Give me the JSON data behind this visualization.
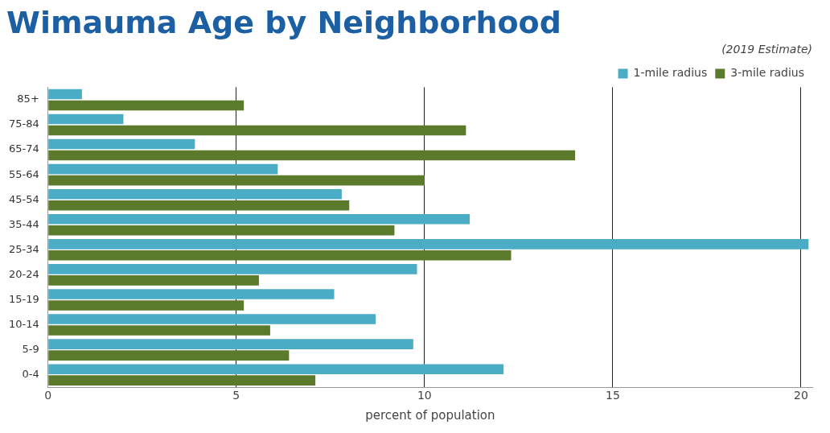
{
  "chart_data": {
    "type": "bar",
    "orientation": "horizontal",
    "title": "Wimauma Age by Neighborhood",
    "subtitle": "(2019 Estimate)",
    "xlabel": "percent of population",
    "categories": [
      "85+",
      "75-84",
      "65-74",
      "55-64",
      "45-54",
      "35-44",
      "25-34",
      "20-24",
      "15-19",
      "10-14",
      "5-9",
      "0-4"
    ],
    "series": [
      {
        "name": "1-mile radius",
        "color": "#4bacc6",
        "values": [
          0.9,
          2.0,
          3.9,
          6.1,
          7.8,
          11.2,
          20.2,
          9.8,
          7.6,
          8.7,
          9.7,
          12.1
        ]
      },
      {
        "name": "3-mile radius",
        "color": "#5b7a2b",
        "values": [
          5.2,
          11.1,
          14.0,
          10.0,
          8.0,
          9.2,
          12.3,
          5.6,
          5.2,
          5.9,
          6.4,
          7.1
        ]
      }
    ],
    "xlim": [
      0,
      20.3
    ],
    "xticks": [
      0,
      5,
      10,
      15,
      20
    ],
    "grid": "x",
    "legend": "top right"
  }
}
